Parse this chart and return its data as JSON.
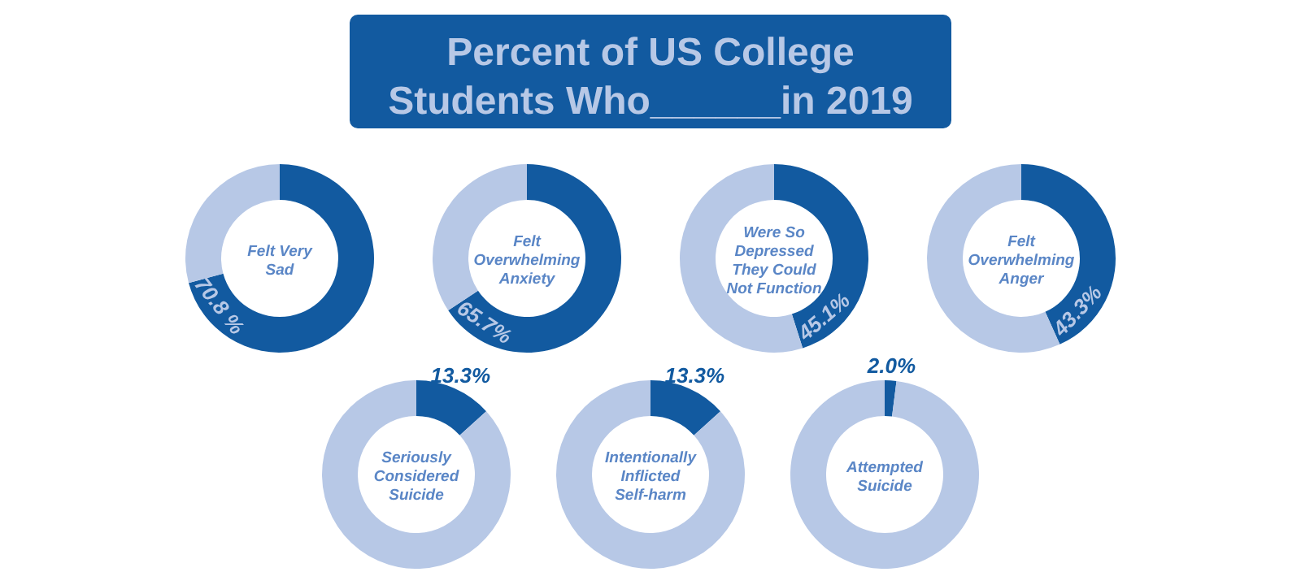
{
  "chart_data": [
    {
      "type": "other",
      "title": "Percent of US College Students Who______in 2019"
    },
    {
      "type": "donut",
      "title": "Felt Very Sad",
      "categories": [
        null,
        null
      ],
      "values": [
        70.8,
        29.2
      ],
      "colors": [
        "#125aa0",
        "#b7c8e6"
      ],
      "value_labels": [
        "70.8 %",
        null
      ]
    },
    {
      "type": "donut",
      "title": "Felt Overwhelming Anxiety",
      "categories": [
        null,
        null
      ],
      "values": [
        65.7,
        34.3
      ],
      "colors": [
        "#125aa0",
        "#b7c8e6"
      ],
      "value_labels": [
        "65.7%",
        null
      ]
    },
    {
      "type": "donut",
      "title": "Were So Depressed They Could Not Function",
      "categories": [
        null,
        null
      ],
      "values": [
        45.1,
        54.9
      ],
      "colors": [
        "#125aa0",
        "#b7c8e6"
      ],
      "value_labels": [
        "45.1%",
        null
      ]
    },
    {
      "type": "donut",
      "title": "Felt Overwhelming Anger",
      "categories": [
        null,
        null
      ],
      "values": [
        43.3,
        56.7
      ],
      "colors": [
        "#125aa0",
        "#b7c8e6"
      ],
      "value_labels": [
        "43.3%",
        null
      ]
    },
    {
      "type": "donut",
      "title": "Seriously Considered Suicide",
      "categories": [
        null,
        null
      ],
      "values": [
        13.3,
        86.7
      ],
      "colors": [
        "#125aa0",
        "#b7c8e6"
      ],
      "value_labels": [
        "13.3%",
        null
      ]
    },
    {
      "type": "donut",
      "title": "Intentionally Inflicted Self-harm",
      "categories": [
        null,
        null
      ],
      "values": [
        13.3,
        86.7
      ],
      "colors": [
        "#125aa0",
        "#b7c8e6"
      ],
      "value_labels": [
        "13.3%",
        null
      ]
    },
    {
      "type": "donut",
      "title": "Attempted Suicide",
      "categories": [
        null,
        null
      ],
      "values": [
        2.0,
        98.0
      ],
      "colors": [
        "#125aa0",
        "#b7c8e6"
      ],
      "value_labels": [
        "2.0%",
        null
      ]
    }
  ]
}
